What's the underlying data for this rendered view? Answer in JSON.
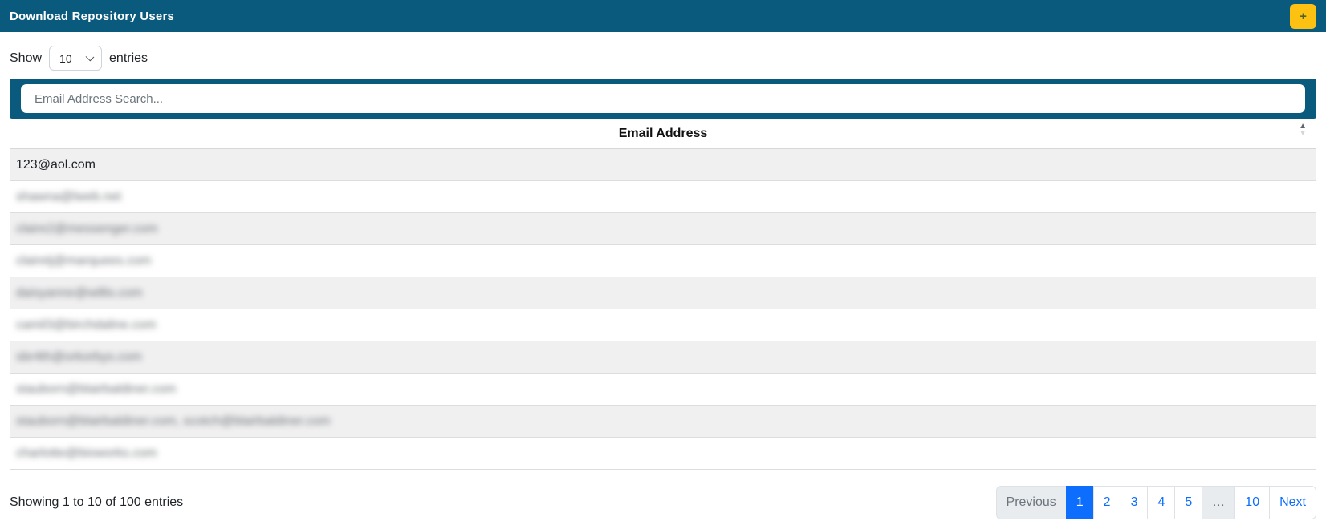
{
  "header": {
    "title": "Download Repository Users",
    "add_button_label": "+"
  },
  "controls": {
    "show_label": "Show",
    "entries_label": "entries",
    "selected_page_length": "10"
  },
  "search": {
    "placeholder": "Email Address Search..."
  },
  "icons": {
    "sort_asc": "▲",
    "sort_desc": "▼"
  },
  "table": {
    "column_header": "Email Address",
    "rows": [
      {
        "email": "123@aol.com",
        "redacted": false
      },
      {
        "email": "shawna@lweb.net",
        "redacted": true
      },
      {
        "email": "claire2@messenger.com",
        "redacted": true
      },
      {
        "email": "clairetj@marquees.com",
        "redacted": true
      },
      {
        "email": "daisyanne@willis.com",
        "redacted": true
      },
      {
        "email": "camil3@birchdaline.com",
        "redacted": true
      },
      {
        "email": "sbr4th@orkorbys.com",
        "redacted": true
      },
      {
        "email": "stauborn@blairbaldiner.com",
        "redacted": true
      },
      {
        "email": "stauborn@blairbaldiner.com, scotch@blairbaldiner.com",
        "redacted": true
      },
      {
        "email": "charlotte@bioworks.com",
        "redacted": true
      }
    ]
  },
  "footer": {
    "info": "Showing 1 to 10 of 100 entries"
  },
  "pagination": {
    "items": [
      {
        "label": "Previous",
        "state": "disabled"
      },
      {
        "label": "1",
        "state": "active"
      },
      {
        "label": "2",
        "state": "page"
      },
      {
        "label": "3",
        "state": "page"
      },
      {
        "label": "4",
        "state": "page"
      },
      {
        "label": "5",
        "state": "page"
      },
      {
        "label": "…",
        "state": "disabled"
      },
      {
        "label": "10",
        "state": "page"
      },
      {
        "label": "Next",
        "state": "page"
      }
    ]
  },
  "colors": {
    "header_bar": "#0a5a7d",
    "accent_yellow": "#fdc112",
    "link_blue": "#0d6efd",
    "active_page_bg": "#0d6efd",
    "disabled_bg": "#e9ecef",
    "row_stripe": "#f0f0f1",
    "row_border": "#dcdddf"
  }
}
